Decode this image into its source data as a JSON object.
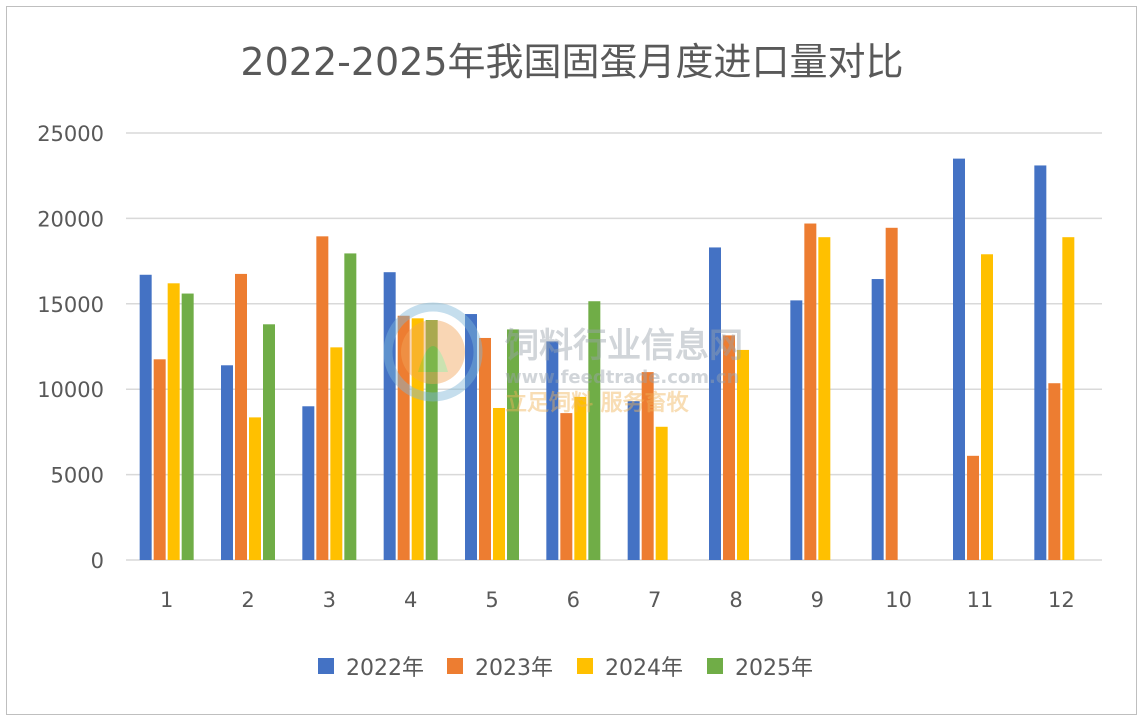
{
  "chart_data": {
    "type": "bar",
    "title": "2022-2025年我国固蛋月度进口量对比",
    "xlabel": "",
    "ylabel": "",
    "ylim": [
      0,
      25000
    ],
    "yticks": [
      "0",
      "5000",
      "10000",
      "15000",
      "20000",
      "25000"
    ],
    "grid": true,
    "legend_position": "bottom",
    "categories": [
      "1",
      "2",
      "3",
      "4",
      "5",
      "6",
      "7",
      "8",
      "9",
      "10",
      "11",
      "12"
    ],
    "series": [
      {
        "name": "2022年",
        "color": "#4472C4",
        "values": [
          16700,
          11400,
          9000,
          16850,
          14400,
          12800,
          9300,
          18300,
          15200,
          16450,
          23500,
          23100
        ]
      },
      {
        "name": "2023年",
        "color": "#ED7D31",
        "values": [
          11750,
          16750,
          18950,
          14300,
          13000,
          8600,
          11000,
          13150,
          19700,
          19450,
          6100,
          10350
        ]
      },
      {
        "name": "2024年",
        "color": "#FFC000",
        "values": [
          16200,
          8350,
          12450,
          14150,
          8900,
          9550,
          7800,
          12300,
          18900,
          null,
          17900,
          18900
        ]
      },
      {
        "name": "2025年",
        "color": "#70AD47",
        "values": [
          15600,
          13800,
          17950,
          14050,
          13500,
          15150,
          null,
          null,
          null,
          null,
          null,
          null
        ]
      }
    ]
  },
  "watermark": {
    "name": "饲料行业信息网",
    "url": "www.feedtrade.com.cn",
    "slogan": "立足饲料 服务畜牧"
  }
}
